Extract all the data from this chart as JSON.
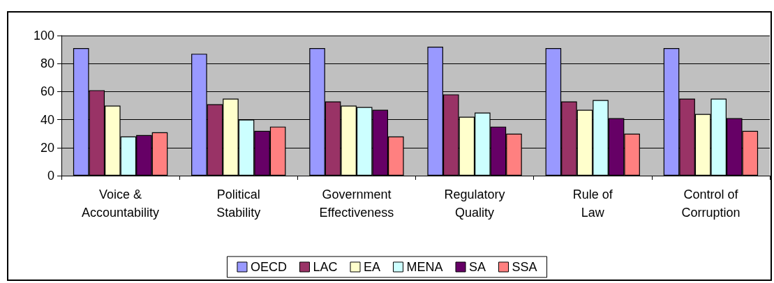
{
  "chart_data": {
    "type": "bar",
    "categories": [
      "Voice & Accountability",
      "Political Stability",
      "Government Effectiveness",
      "Regulatory Quality",
      "Rule of Law",
      "Control of Corruption"
    ],
    "series": [
      {
        "name": "OECD",
        "color": "#9999ff",
        "values": [
          91,
          87,
          91,
          92,
          91,
          91
        ]
      },
      {
        "name": "LAC",
        "color": "#993366",
        "values": [
          61,
          51,
          53,
          58,
          53,
          55
        ]
      },
      {
        "name": "EA",
        "color": "#ffffcc",
        "values": [
          50,
          55,
          50,
          42,
          47,
          44
        ]
      },
      {
        "name": "MENA",
        "color": "#ccffff",
        "values": [
          28,
          40,
          49,
          45,
          54,
          55
        ]
      },
      {
        "name": "SA",
        "color": "#660066",
        "values": [
          29,
          32,
          47,
          35,
          41,
          41
        ]
      },
      {
        "name": "SSA",
        "color": "#ff8080",
        "values": [
          31,
          35,
          28,
          30,
          30,
          32
        ]
      }
    ],
    "ylim": [
      0,
      100
    ],
    "yticks": [
      0,
      20,
      40,
      60,
      80,
      100
    ],
    "grid": "y",
    "legend": "bottom"
  }
}
